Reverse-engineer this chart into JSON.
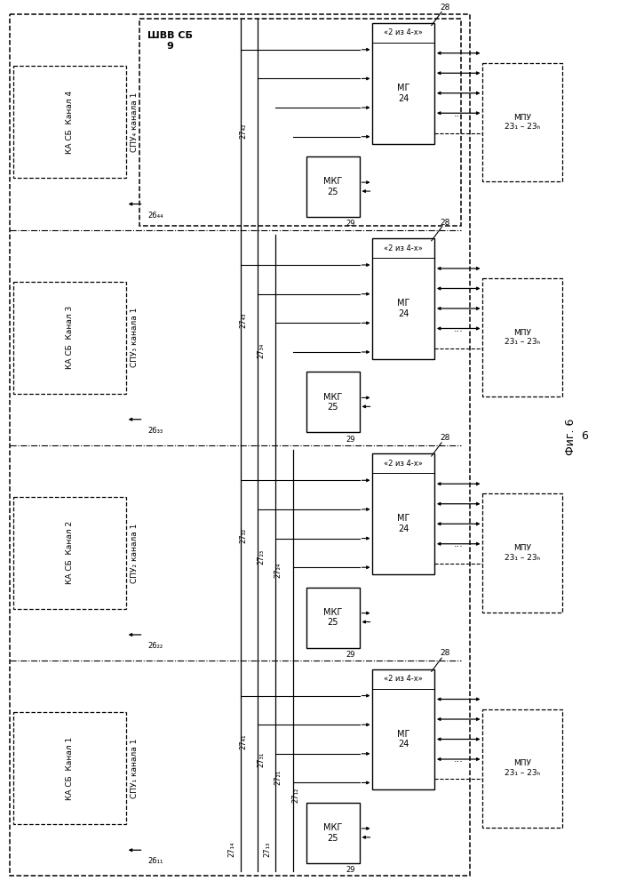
{
  "bg": "#ffffff",
  "fig_label": "Фиг. 6",
  "fig_number": "6",
  "shvv_label": "ШВВ СБ\n9",
  "mg_label": "МГ\n24",
  "mkg_label": "МКГ\n25",
  "two_of_4": "«2 из 4-х»",
  "mpu_label": "МПУ\n23₁ – 23ₕ",
  "lbl_28": "28",
  "lbl_29": "29",
  "channels": [
    4,
    3,
    2,
    1
  ],
  "ka_labels": [
    "КА СБ  Канал 4",
    "КА СБ  Канал 3",
    "КА СБ  Канал 2",
    "КА СБ  Канал 1"
  ],
  "spu_labels": [
    "СПУ₄ канала 1",
    "СПУ₃ канала 1",
    "СПУ₂ канала 1",
    "СПУ₁ канала 1"
  ],
  "lbl26": [
    "26₄₄",
    "26₃₃",
    "26₂₂",
    "26₁₁"
  ],
  "bus_labels_ch4": [
    [
      "27₄₂"
    ]
  ],
  "bus_labels_ch3": [
    [
      "27₄₃",
      "27₃₄"
    ]
  ],
  "bus_labels_ch2": [
    [
      "27₄₂",
      "27₃₂",
      "27₂₃",
      "27₂₄"
    ]
  ],
  "bus_labels_ch1": [
    [
      "27₄₁",
      "27₃₁",
      "27₂₁",
      "27₁₂",
      "27₁₃",
      "27₁₄"
    ]
  ]
}
